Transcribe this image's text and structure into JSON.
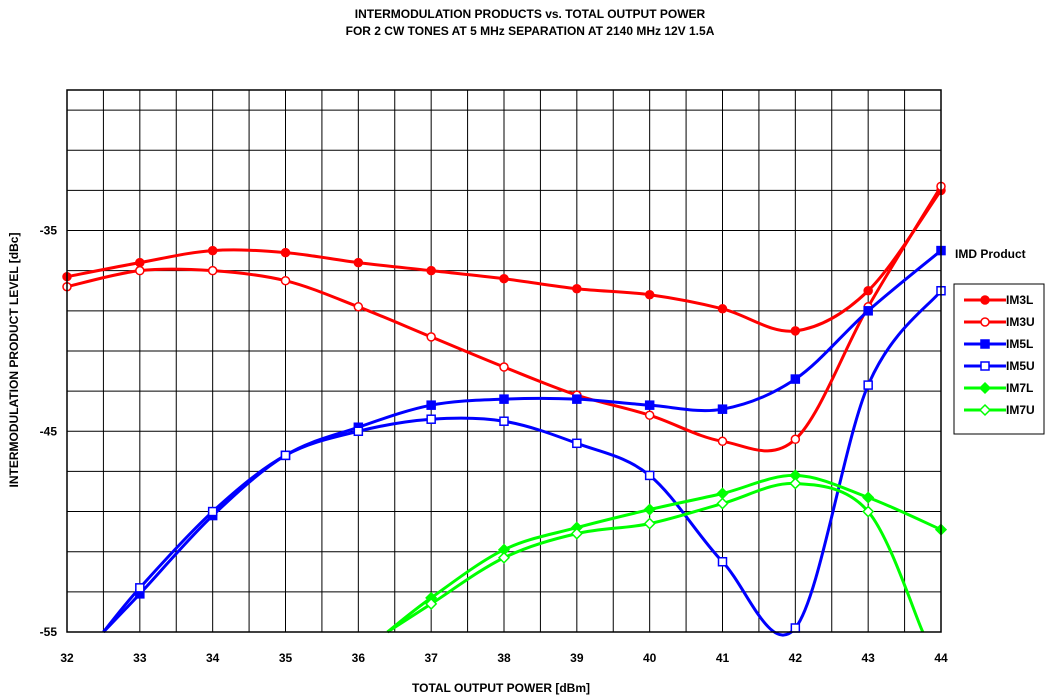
{
  "chart_data": {
    "type": "line",
    "title_line1": "INTERMODULATION PRODUCTS vs. TOTAL OUTPUT POWER",
    "title_line2": "FOR 2 CW TONES AT 5 MHz SEPARATION AT 2140 MHz  12V 1.5A",
    "xlabel": "TOTAL OUTPUT POWER [dBm]",
    "ylabel": "INTERMODULATION PRODUCT LEVEL [dBc]",
    "xlim": [
      32,
      44
    ],
    "ylim": [
      -55,
      -28
    ],
    "x_ticks": [
      "32",
      "33",
      "34",
      "35",
      "36",
      "37",
      "38",
      "39",
      "40",
      "41",
      "42",
      "43",
      "44"
    ],
    "y_ticks": [
      {
        "value": -35,
        "label": "-35"
      },
      {
        "value": -45,
        "label": "-45"
      },
      {
        "value": -55,
        "label": "-55"
      }
    ],
    "grid": true,
    "legend_title": "IMD Product",
    "legend_position": "right",
    "series": [
      {
        "name": "IM3L",
        "color": "#ff0000",
        "marker": "circle",
        "filled": true,
        "x": [
          32,
          33,
          34,
          35,
          36,
          37,
          38,
          39,
          40,
          41,
          42,
          43,
          44
        ],
        "y": [
          -37.3,
          -36.6,
          -36.0,
          -36.1,
          -36.6,
          -37.0,
          -37.4,
          -37.9,
          -38.2,
          -38.9,
          -40.0,
          -38.0,
          -33.0
        ]
      },
      {
        "name": "IM3U",
        "color": "#ff0000",
        "marker": "circle",
        "filled": false,
        "x": [
          32,
          33,
          34,
          35,
          36,
          37,
          38,
          39,
          40,
          41,
          42,
          43,
          44
        ],
        "y": [
          -37.8,
          -37.0,
          -37.0,
          -37.5,
          -38.8,
          -40.3,
          -41.8,
          -43.2,
          -44.2,
          -45.5,
          -45.4,
          -38.8,
          -32.8
        ]
      },
      {
        "name": "IM5L",
        "color": "#0000ff",
        "marker": "square",
        "filled": true,
        "x": [
          32.5,
          33,
          34,
          35,
          36,
          37,
          38,
          39,
          40,
          41,
          42,
          43,
          44
        ],
        "y": [
          -55,
          -53.1,
          -49.2,
          -46.2,
          -44.8,
          -43.7,
          -43.4,
          -43.4,
          -43.7,
          -43.9,
          -42.4,
          -39.0,
          -36.0
        ]
      },
      {
        "name": "IM5U",
        "color": "#0000ff",
        "marker": "square",
        "filled": false,
        "x": [
          32.5,
          33,
          34,
          35,
          36,
          37,
          38,
          39,
          40,
          41,
          42,
          43,
          44
        ],
        "y": [
          -55,
          -52.8,
          -49.0,
          -46.2,
          -45.0,
          -44.4,
          -44.5,
          -45.6,
          -47.2,
          -51.5,
          -54.8,
          -42.7,
          -38.0
        ]
      },
      {
        "name": "IM7L",
        "color": "#00ff00",
        "marker": "diamond",
        "filled": true,
        "x": [
          36.4,
          37,
          38,
          39,
          40,
          41,
          42,
          43,
          44
        ],
        "y": [
          -55,
          -53.3,
          -50.9,
          -49.8,
          -48.9,
          -48.1,
          -47.2,
          -48.3,
          -49.9
        ]
      },
      {
        "name": "IM7U",
        "color": "#00ff00",
        "marker": "diamond",
        "filled": false,
        "x": [
          36.4,
          37,
          38,
          39,
          40,
          41,
          42,
          43,
          43.75
        ],
        "y": [
          -55,
          -53.6,
          -51.3,
          -50.1,
          -49.6,
          -48.6,
          -47.6,
          -49.0,
          -55
        ]
      }
    ]
  }
}
